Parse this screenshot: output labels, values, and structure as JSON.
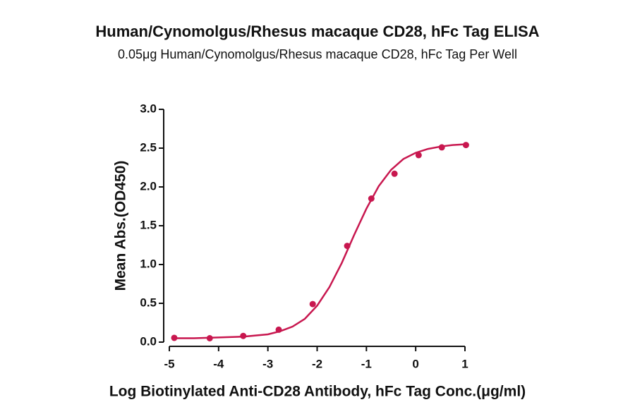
{
  "chart_data": {
    "type": "scatter",
    "title": "Human/Cynomolgus/Rhesus macaque CD28, hFc Tag ELISA",
    "subtitle": "0.05μg Human/Cynomolgus/Rhesus macaque CD28, hFc Tag Per Well",
    "x_label": "Log Biotinylated Anti-CD28 Antibody, hFc Tag Conc.(μg/ml)",
    "y_label": "Mean Abs.(OD450)",
    "xlim": [
      -5,
      1
    ],
    "ylim": [
      0,
      3
    ],
    "xticks": [
      -5,
      -4,
      -3,
      -2,
      -1,
      0,
      1
    ],
    "yticks": [
      {
        "value": 0,
        "label": "0.0"
      },
      {
        "value": 0.5,
        "label": "0.5"
      },
      {
        "value": 1,
        "label": "1.0"
      },
      {
        "value": 1.5,
        "label": "1.5"
      },
      {
        "value": 2,
        "label": "2.0"
      },
      {
        "value": 2.5,
        "label": "2.5"
      },
      {
        "value": 3,
        "label": "3.0"
      }
    ],
    "series": [
      {
        "mode": "markers",
        "color": "#c8174f",
        "x": [
          -4.9,
          -4.18,
          -3.5,
          -2.78,
          -2.09,
          -1.39,
          -0.9,
          -0.43,
          0.06,
          0.53,
          1.02
        ],
        "values": [
          0.055,
          0.05,
          0.08,
          0.16,
          0.49,
          1.24,
          1.85,
          2.17,
          2.41,
          2.51,
          2.54
        ]
      },
      {
        "mode": "line",
        "color": "#c8174f",
        "x": [
          -4.9,
          -4.5,
          -4,
          -3.5,
          -3,
          -2.75,
          -2.5,
          -2.25,
          -2,
          -1.75,
          -1.5,
          -1.25,
          -1,
          -0.75,
          -0.5,
          -0.25,
          0,
          0.25,
          0.5,
          0.75,
          1.02
        ],
        "values": [
          0.05,
          0.05,
          0.06,
          0.07,
          0.1,
          0.14,
          0.2,
          0.3,
          0.47,
          0.71,
          1.02,
          1.38,
          1.72,
          2.01,
          2.22,
          2.36,
          2.44,
          2.49,
          2.52,
          2.54,
          2.55
        ]
      }
    ]
  }
}
